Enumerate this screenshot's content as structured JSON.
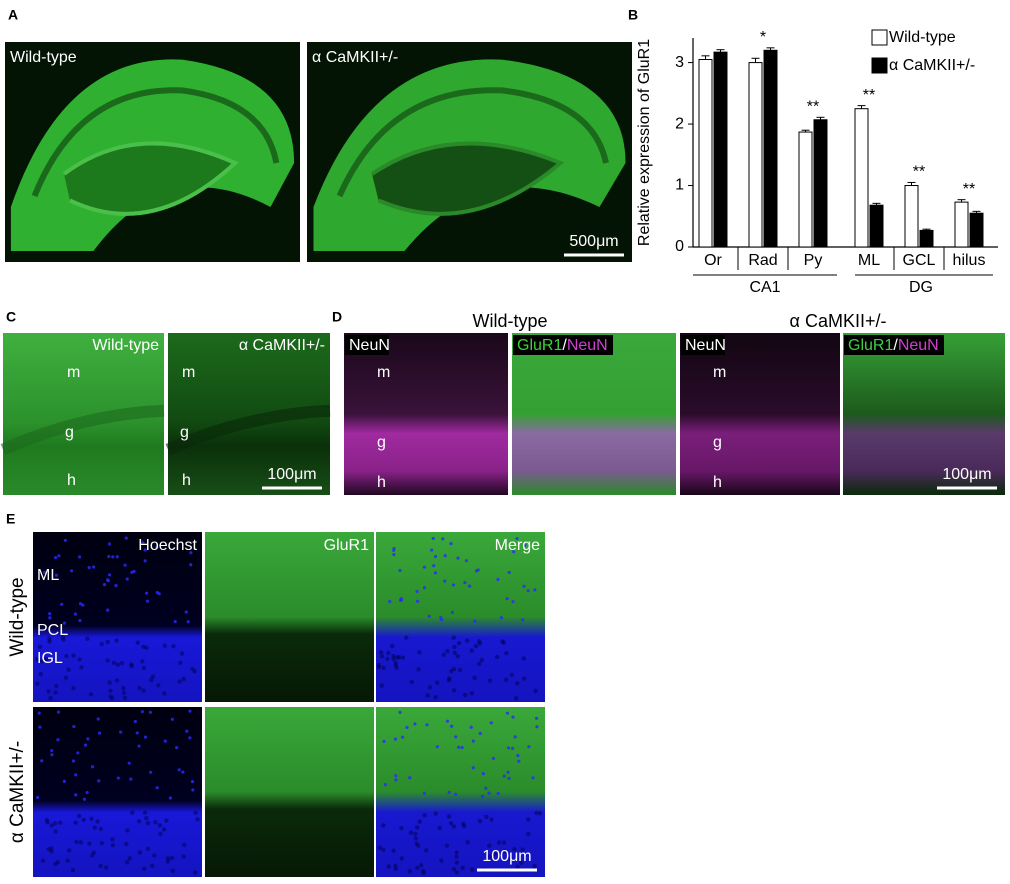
{
  "panel_a": {
    "letter": "A",
    "images": [
      {
        "label": "Wild-type"
      },
      {
        "label": "α CaMKII+/-",
        "scale_bar": "500μm"
      }
    ]
  },
  "chart_data": {
    "letter": "B",
    "type": "bar",
    "y_label": "Relative expression of GluR1",
    "categories": [
      "Or",
      "Rad",
      "Py",
      "ML",
      "GCL",
      "hilus"
    ],
    "groups": [
      {
        "name": "CA1",
        "categories": 3
      },
      {
        "name": "DG",
        "categories": 3
      }
    ],
    "series": [
      {
        "name": "Wild-type",
        "color": "#ffffff",
        "values": [
          3.05,
          3.0,
          1.87,
          2.25,
          1.0,
          0.73
        ],
        "errors": [
          0.06,
          0.07,
          0.03,
          0.05,
          0.05,
          0.04
        ]
      },
      {
        "name": "α CaMKII+/-",
        "color": "#000000",
        "values": [
          3.17,
          3.2,
          2.07,
          0.68,
          0.27,
          0.55
        ],
        "errors": [
          0.04,
          0.04,
          0.04,
          0.03,
          0.02,
          0.03
        ]
      }
    ],
    "significance": [
      null,
      "*",
      "**",
      "**",
      "**",
      "**"
    ],
    "ylim": [
      0,
      3.4
    ],
    "yticks": [
      0,
      1,
      2,
      3
    ],
    "legend": "top-right"
  },
  "panel_c": {
    "letter": "C",
    "images": [
      {
        "label": "Wild-type",
        "layers": [
          "m",
          "g",
          "h"
        ]
      },
      {
        "label": "α CaMKII+/-",
        "layers": [
          "m",
          "g",
          "h"
        ],
        "scale_bar": "100μm"
      }
    ]
  },
  "panel_d": {
    "letter": "D",
    "groups": [
      {
        "title": "Wild-type",
        "images": [
          {
            "stain": [
              "NeuN"
            ],
            "layers": [
              "m",
              "g",
              "h"
            ]
          },
          {
            "stain": [
              "GluR1",
              "/",
              "NeuN"
            ]
          }
        ]
      },
      {
        "title": "α CaMKII+/-",
        "images": [
          {
            "stain": [
              "NeuN"
            ],
            "layers": [
              "m",
              "g",
              "h"
            ]
          },
          {
            "stain": [
              "GluR1",
              "/",
              "NeuN"
            ],
            "scale_bar": "100μm"
          }
        ]
      }
    ]
  },
  "panel_e": {
    "letter": "E",
    "columns": [
      "Hoechst",
      "GluR1",
      "Merge"
    ],
    "rows": [
      "Wild-type",
      "α CaMKII+/-"
    ],
    "layers": [
      "ML",
      "PCL",
      "IGL"
    ],
    "scale_bar": "100μm"
  }
}
